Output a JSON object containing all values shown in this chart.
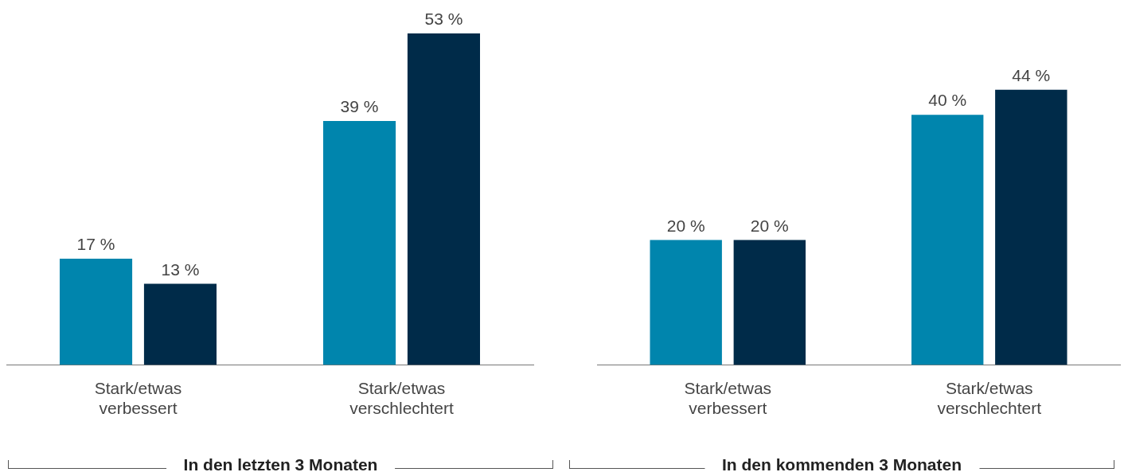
{
  "chart_data": [
    {
      "type": "bar",
      "xlabel": "In den letzten 3 Monaten",
      "categories": [
        "Stark/etwas verbessert",
        "Stark/etwas verschlechtert"
      ],
      "tick_labels": "x",
      "grid": false,
      "legend": false,
      "series": [
        {
          "color": "#0085ad",
          "values": [
            17,
            39
          ],
          "value_labels": [
            "17 %",
            "39 %"
          ]
        },
        {
          "color": "#002b49",
          "values": [
            13,
            53
          ],
          "value_labels": [
            "13 %",
            "53 %"
          ]
        }
      ]
    },
    {
      "type": "bar",
      "xlabel": "In den kommenden 3 Monaten",
      "categories": [
        "Stark/etwas verbessert",
        "Stark/etwas verschlechtert"
      ],
      "tick_labels": "x",
      "grid": false,
      "legend": false,
      "series": [
        {
          "color": "#0085ad",
          "values": [
            20,
            40
          ],
          "value_labels": [
            "20 %",
            "40 %"
          ]
        },
        {
          "color": "#002b49",
          "values": [
            20,
            44
          ],
          "value_labels": [
            "20 %",
            "44 %"
          ]
        }
      ]
    }
  ]
}
